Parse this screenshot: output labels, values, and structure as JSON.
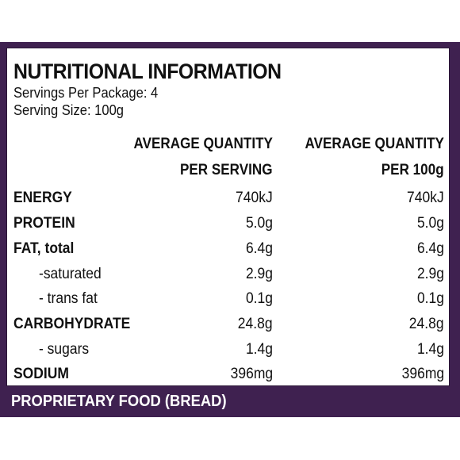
{
  "panel": {
    "title": "NUTRITIONAL INFORMATION",
    "servings": "Servings Per Package: 4",
    "serving_size": "Serving Size: 100g"
  },
  "columns": {
    "per_serving_line1": "AVERAGE QUANTITY",
    "per_serving_line2": "PER SERVING",
    "per_100g_line1": "AVERAGE QUANTITY",
    "per_100g_line2": "PER 100g"
  },
  "rows": [
    {
      "label": "ENERGY",
      "per_serving": "740kJ",
      "per_100g": "740kJ"
    },
    {
      "label": "PROTEIN",
      "per_serving": "5.0g",
      "per_100g": "5.0g"
    },
    {
      "label": "FAT, total",
      "per_serving": "6.4g",
      "per_100g": "6.4g"
    },
    {
      "label": "-saturated",
      "per_serving": "2.9g",
      "per_100g": "2.9g"
    },
    {
      "label": "- trans fat",
      "per_serving": "0.1g",
      "per_100g": "0.1g"
    },
    {
      "label": "CARBOHYDRATE",
      "per_serving": "24.8g",
      "per_100g": "24.8g"
    },
    {
      "label": "- sugars",
      "per_serving": "1.4g",
      "per_100g": "1.4g"
    },
    {
      "label": "SODIUM",
      "per_serving": "396mg",
      "per_100g": "396mg"
    }
  ],
  "footer": {
    "text": "PROPRIETARY FOOD (BREAD)"
  },
  "colors": {
    "frame": "#3f2150",
    "panel": "#ffffff",
    "text": "#111111",
    "footer_text": "#ffffff"
  }
}
